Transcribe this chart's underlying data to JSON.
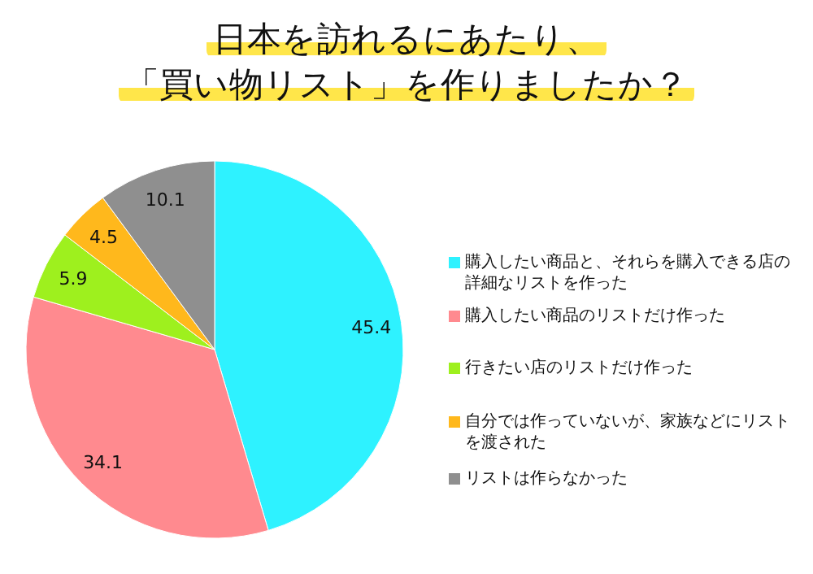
{
  "chart_data": {
    "type": "pie",
    "title": "日本を訪れるにあたり、「買い物リスト」を作りましたか？",
    "categories": [
      "購入したい商品と、それらを購入できる店の詳細なリストを作った",
      "購入したい商品のリストだけ作った",
      "行きたい店のリストだけ作った",
      "自分では作っていないが、家族などにリストを渡された",
      "リストは作らなかった"
    ],
    "values": [
      45.4,
      34.1,
      5.9,
      4.5,
      10.1
    ],
    "colors": [
      "#2ef2ff",
      "#ff8a8f",
      "#9ef01e",
      "#ffb81c",
      "#8f8f8f"
    ],
    "data_labels": true,
    "legend": "right"
  }
}
